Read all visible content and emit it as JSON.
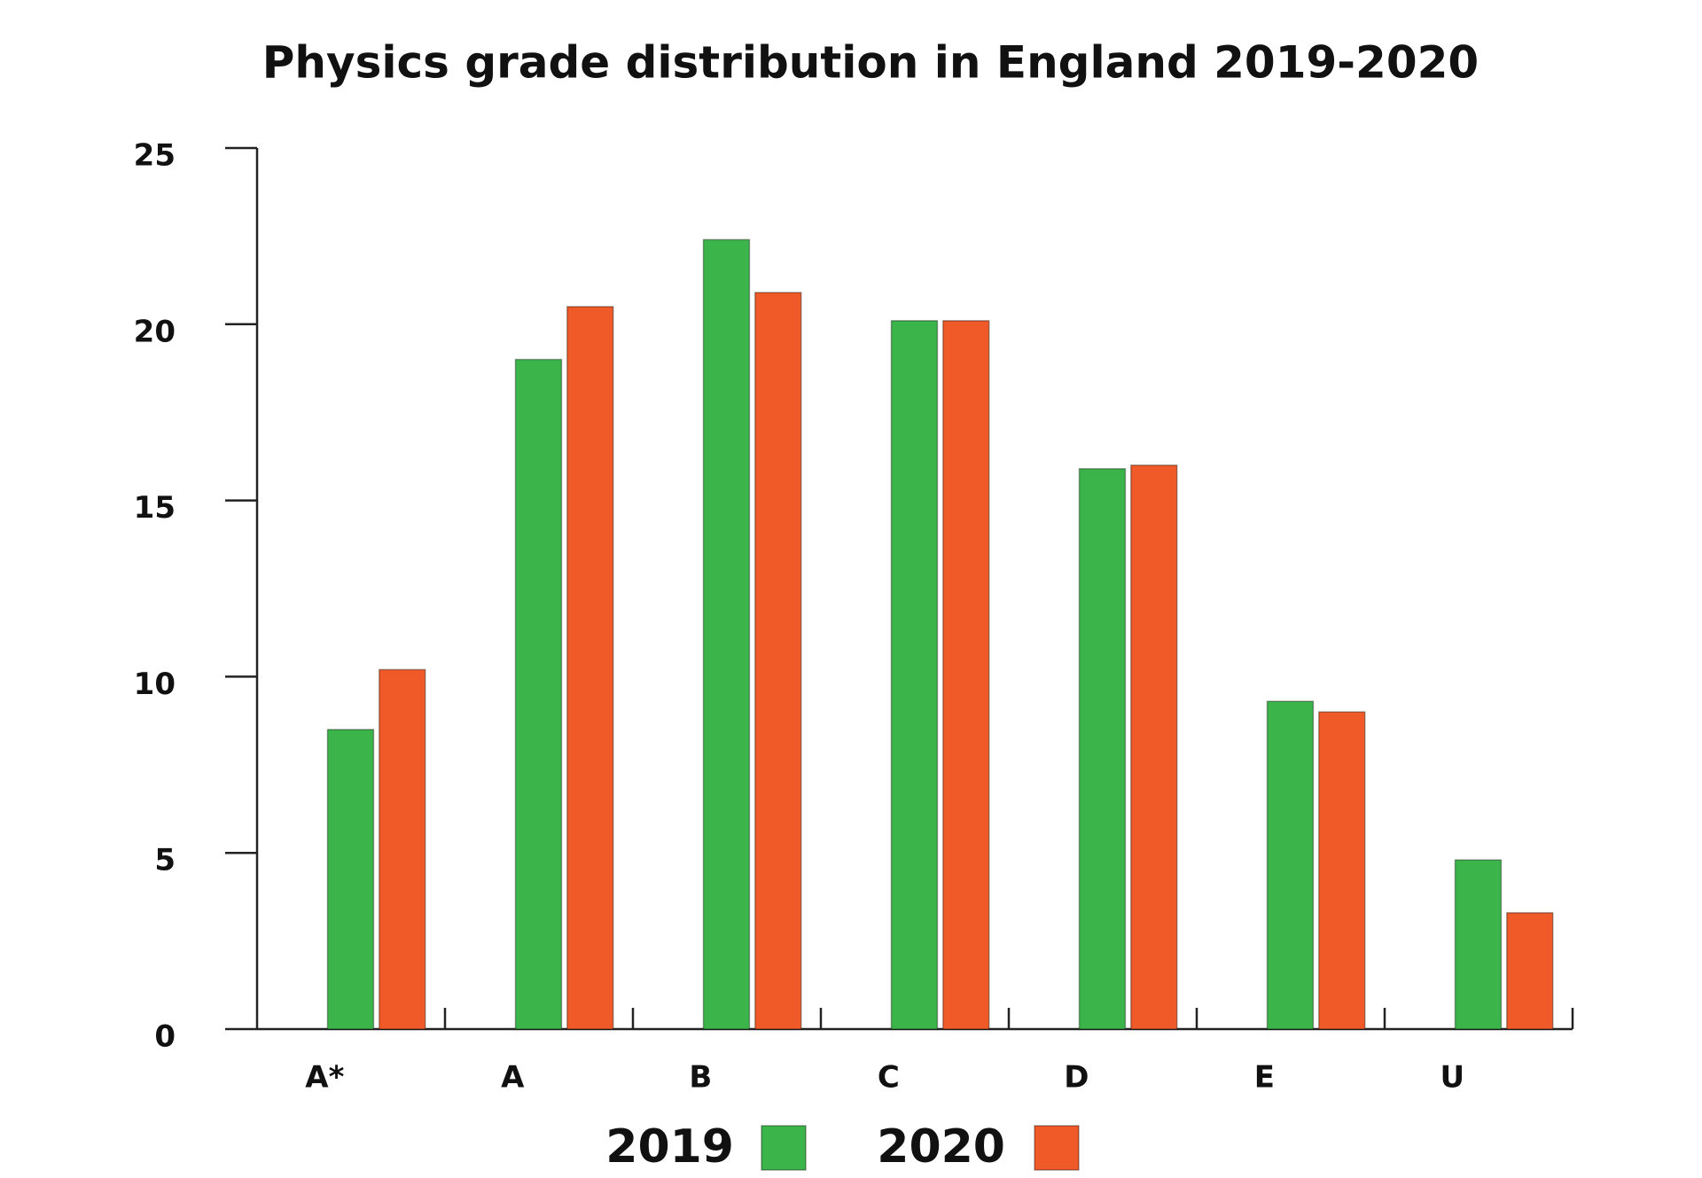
{
  "chart_data": {
    "type": "bar",
    "title": "Physics grade distribution in England 2019-2020",
    "categories": [
      "A*",
      "A",
      "B",
      "C",
      "D",
      "E",
      "U"
    ],
    "series": [
      {
        "name": "2019",
        "color": "#3bb54a",
        "values": [
          8.5,
          19.0,
          22.4,
          20.1,
          15.9,
          9.3,
          4.8
        ]
      },
      {
        "name": "2020",
        "color": "#f05a28",
        "values": [
          10.2,
          20.5,
          20.9,
          20.1,
          16.0,
          9.0,
          3.3
        ]
      }
    ],
    "ylim": [
      0,
      25
    ],
    "yticks": [
      0,
      5,
      10,
      15,
      20,
      25
    ],
    "grid": false,
    "legend": "bottom"
  }
}
